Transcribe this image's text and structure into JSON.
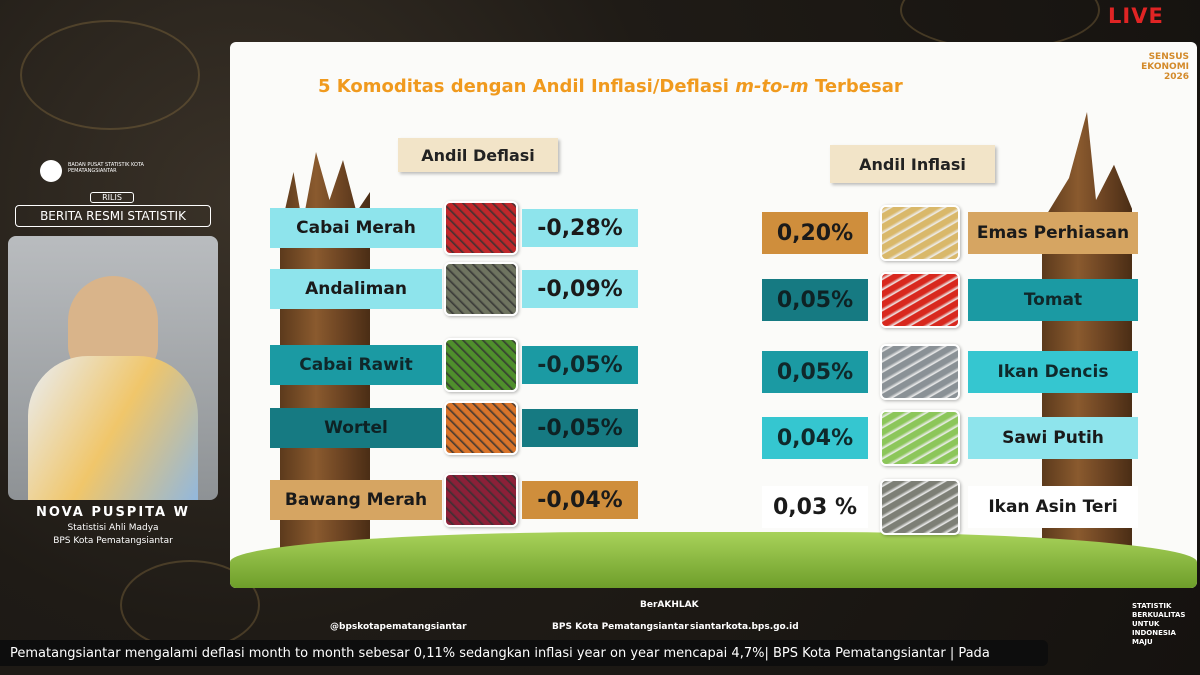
{
  "live_badge": "LIVE",
  "presenter": {
    "org_name": "BADAN PUSAT STATISTIK KOTA PEMATANGSIANTAR",
    "rilis": "RILIS",
    "banner": "BERITA RESMI STATISTIK",
    "name": "NOVA PUSPITA W",
    "role": "Statistisi Ahli Madya",
    "office": "BPS Kota Pematangsiantar"
  },
  "slide": {
    "title": {
      "prefix": "5 Komoditas dengan Andil Inflasi/Deflasi",
      "italic": "m-to-m",
      "suffix": "Terbesar"
    },
    "logo": {
      "line1": "SENSUS",
      "line2": "EKONOMI",
      "line3": "2026"
    },
    "deflation": {
      "heading": "Andil Deflasi",
      "items": [
        {
          "name": "Cabai Merah",
          "value": "-0,28%"
        },
        {
          "name": "Andaliman",
          "value": "-0,09%"
        },
        {
          "name": "Cabai Rawit",
          "value": "-0,05%"
        },
        {
          "name": "Wortel",
          "value": "-0,05%"
        },
        {
          "name": "Bawang Merah",
          "value": "-0,04%"
        }
      ]
    },
    "inflation": {
      "heading": "Andil Inflasi",
      "items": [
        {
          "name": "Emas Perhiasan",
          "value": "0,20%"
        },
        {
          "name": "Tomat",
          "value": "0,05%"
        },
        {
          "name": "Ikan Dencis",
          "value": "0,05%"
        },
        {
          "name": "Sawi Putih",
          "value": "0,04%"
        },
        {
          "name": "Ikan Asin Teri",
          "value": "0,03 %"
        }
      ]
    }
  },
  "footer": {
    "instagram": "@bpskotapematangsiantar",
    "brand": "BPS Kota Pematangsiantar",
    "website": "siantarkota.bps.go.id",
    "berakhlak": "BerAKHLAK",
    "motto": [
      "STATISTIK",
      "BERKUALITAS",
      "UNTUK",
      "INDONESIA",
      "MAJU"
    ]
  },
  "ticker": "Pematangsiantar mengalami deflasi month to month sebesar 0,11% sedangkan inflasi year on year mencapai 4,7%| BPS Kota Pematangsiantar | Pada"
}
